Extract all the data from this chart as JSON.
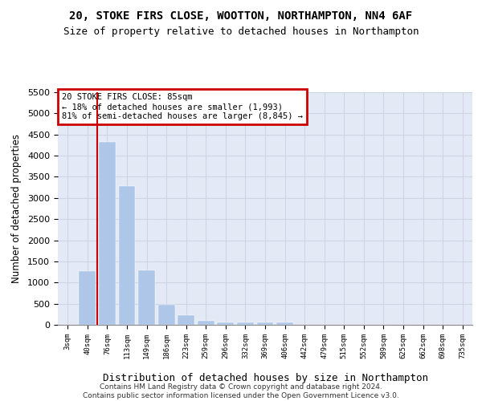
{
  "title1": "20, STOKE FIRS CLOSE, WOOTTON, NORTHAMPTON, NN4 6AF",
  "title2": "Size of property relative to detached houses in Northampton",
  "xlabel": "Distribution of detached houses by size in Northampton",
  "ylabel": "Number of detached properties",
  "categories": [
    "3sqm",
    "40sqm",
    "76sqm",
    "113sqm",
    "149sqm",
    "186sqm",
    "223sqm",
    "259sqm",
    "296sqm",
    "332sqm",
    "369sqm",
    "406sqm",
    "442sqm",
    "479sqm",
    "515sqm",
    "552sqm",
    "589sqm",
    "625sqm",
    "662sqm",
    "698sqm",
    "735sqm"
  ],
  "values": [
    0,
    1270,
    4330,
    3290,
    1290,
    480,
    230,
    100,
    60,
    55,
    50,
    50,
    0,
    0,
    0,
    0,
    0,
    0,
    0,
    0,
    0
  ],
  "bar_color": "#aec6e8",
  "vline_x": 1.5,
  "vline_color": "#cc0000",
  "annotation_text": "20 STOKE FIRS CLOSE: 85sqm\n← 18% of detached houses are smaller (1,993)\n81% of semi-detached houses are larger (8,845) →",
  "annotation_box_edgecolor": "#cc0000",
  "ylim_max": 5500,
  "yticks": [
    0,
    500,
    1000,
    1500,
    2000,
    2500,
    3000,
    3500,
    4000,
    4500,
    5000,
    5500
  ],
  "grid_color": "#cdd5e5",
  "background_color": "#e4eaf5",
  "footer": "Contains HM Land Registry data © Crown copyright and database right 2024.\nContains public sector information licensed under the Open Government Licence v3.0.",
  "title1_fontsize": 10,
  "title2_fontsize": 9,
  "xlabel_fontsize": 9,
  "ylabel_fontsize": 8.5,
  "footer_fontsize": 6.5
}
